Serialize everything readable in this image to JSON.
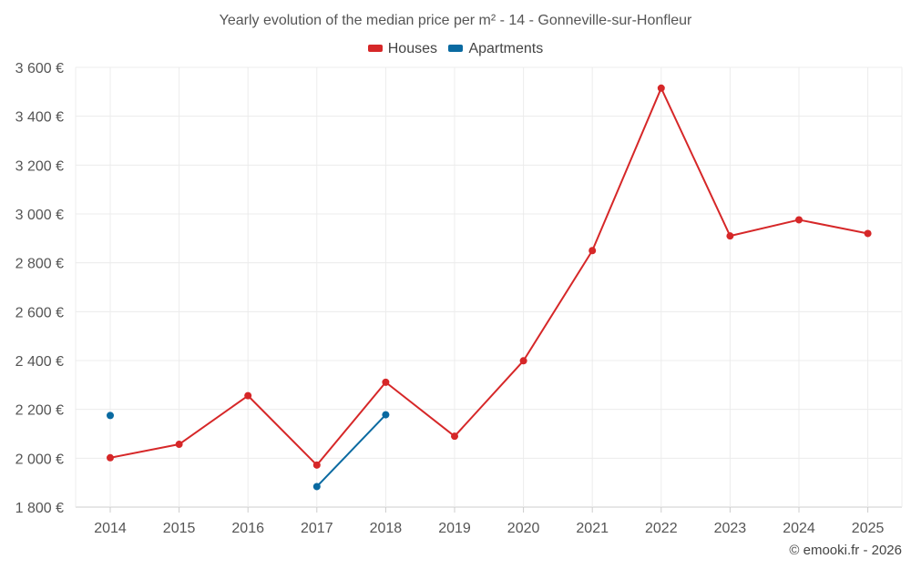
{
  "chart_data": {
    "type": "line",
    "title": "Yearly evolution of the median price per m² - 14 - Gonneville-sur-Honfleur",
    "xlabel": "",
    "ylabel": "",
    "categories": [
      "2014",
      "2015",
      "2016",
      "2017",
      "2018",
      "2019",
      "2020",
      "2021",
      "2022",
      "2023",
      "2024",
      "2025"
    ],
    "y_ticks": [
      "1 800 €",
      "2 000 €",
      "2 200 €",
      "2 400 €",
      "2 600 €",
      "2 800 €",
      "3 000 €",
      "3 200 €",
      "3 400 €",
      "3 600 €"
    ],
    "ylim": [
      1800,
      3600
    ],
    "grid": true,
    "legend_position": "top-center",
    "series": [
      {
        "name": "Houses",
        "color": "#d62728",
        "values": [
          2002,
          2057,
          2256,
          1972,
          2311,
          2090,
          2399,
          2850,
          3515,
          2910,
          2976,
          2920
        ]
      },
      {
        "name": "Apartments",
        "color": "#0a6aa1",
        "values": [
          2175,
          null,
          null,
          1884,
          2178,
          null,
          null,
          null,
          null,
          null,
          null,
          null
        ]
      }
    ]
  },
  "credit": "© emooki.fr - 2026"
}
